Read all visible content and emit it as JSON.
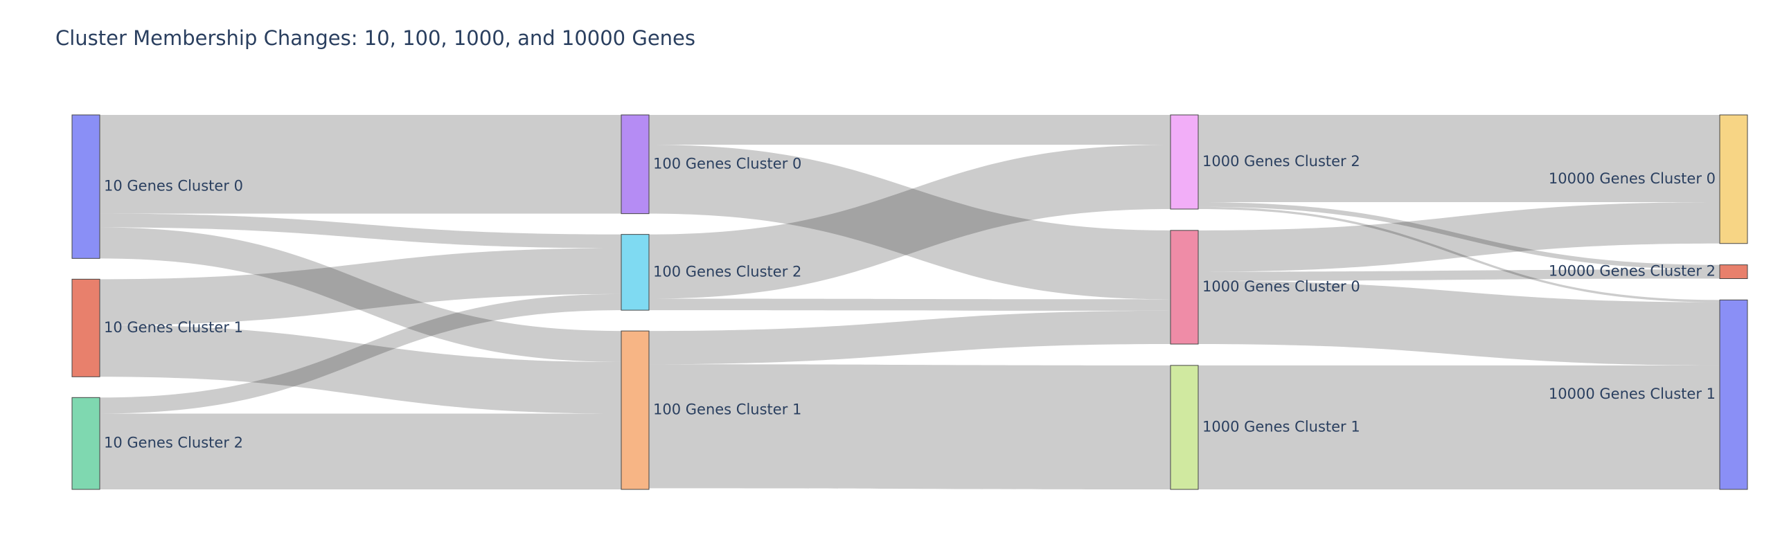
{
  "chart_data": {
    "type": "sankey",
    "title": "Cluster Membership Changes: 10, 100, 1000, and 10000 Genes",
    "link_color": "#cccccc",
    "nodes": [
      {
        "id": "g10_c0",
        "label": "10 Genes Cluster 0",
        "stage": 0,
        "color": "#8a8ff6"
      },
      {
        "id": "g10_c1",
        "label": "10 Genes Cluster 1",
        "stage": 0,
        "color": "#e8806c"
      },
      {
        "id": "g10_c2",
        "label": "10 Genes Cluster 2",
        "stage": 0,
        "color": "#7fd8b0"
      },
      {
        "id": "g100_c0",
        "label": "100 Genes Cluster 0",
        "stage": 1,
        "color": "#b58cf4"
      },
      {
        "id": "g100_c2",
        "label": "100 Genes Cluster 2",
        "stage": 1,
        "color": "#7fdaf2"
      },
      {
        "id": "g100_c1",
        "label": "100 Genes Cluster 1",
        "stage": 1,
        "color": "#f7b585"
      },
      {
        "id": "g1000_c2",
        "label": "1000 Genes Cluster 2",
        "stage": 2,
        "color": "#f2aef8"
      },
      {
        "id": "g1000_c0",
        "label": "1000 Genes Cluster 0",
        "stage": 2,
        "color": "#ef8ca7"
      },
      {
        "id": "g1000_c1",
        "label": "1000 Genes Cluster 1",
        "stage": 2,
        "color": "#d0e9a0"
      },
      {
        "id": "g10000_c0",
        "label": "10000 Genes Cluster 0",
        "stage": 3,
        "color": "#f7d585"
      },
      {
        "id": "g10000_c2",
        "label": "10000 Genes Cluster 2",
        "stage": 3,
        "color": "#e8806c"
      },
      {
        "id": "g10000_c1",
        "label": "10000 Genes Cluster 1",
        "stage": 3,
        "color": "#8a8ff6"
      }
    ],
    "links": [
      {
        "source": "g10_c0",
        "target": "g100_c0",
        "value": 86
      },
      {
        "source": "g10_c0",
        "target": "g100_c2",
        "value": 12
      },
      {
        "source": "g10_c0",
        "target": "g100_c1",
        "value": 27
      },
      {
        "source": "g10_c1",
        "target": "g100_c2",
        "value": 40
      },
      {
        "source": "g10_c1",
        "target": "g100_c1",
        "value": 45
      },
      {
        "source": "g10_c2",
        "target": "g100_c2",
        "value": 14
      },
      {
        "source": "g10_c2",
        "target": "g100_c1",
        "value": 66
      },
      {
        "source": "g100_c0",
        "target": "g1000_c2",
        "value": 26
      },
      {
        "source": "g100_c0",
        "target": "g1000_c0",
        "value": 60
      },
      {
        "source": "g100_c2",
        "target": "g1000_c2",
        "value": 56
      },
      {
        "source": "g100_c2",
        "target": "g1000_c0",
        "value": 10
      },
      {
        "source": "g100_c1",
        "target": "g1000_c0",
        "value": 29
      },
      {
        "source": "g100_c1",
        "target": "g1000_c1",
        "value": 108
      },
      {
        "source": "g1000_c2",
        "target": "g10000_c0",
        "value": 76
      },
      {
        "source": "g1000_c2",
        "target": "g10000_c2",
        "value": 4
      },
      {
        "source": "g1000_c2",
        "target": "g10000_c1",
        "value": 2
      },
      {
        "source": "g1000_c0",
        "target": "g10000_c0",
        "value": 36
      },
      {
        "source": "g1000_c0",
        "target": "g10000_c2",
        "value": 8
      },
      {
        "source": "g1000_c0",
        "target": "g10000_c1",
        "value": 55
      },
      {
        "source": "g1000_c1",
        "target": "g10000_c1",
        "value": 108
      }
    ]
  }
}
